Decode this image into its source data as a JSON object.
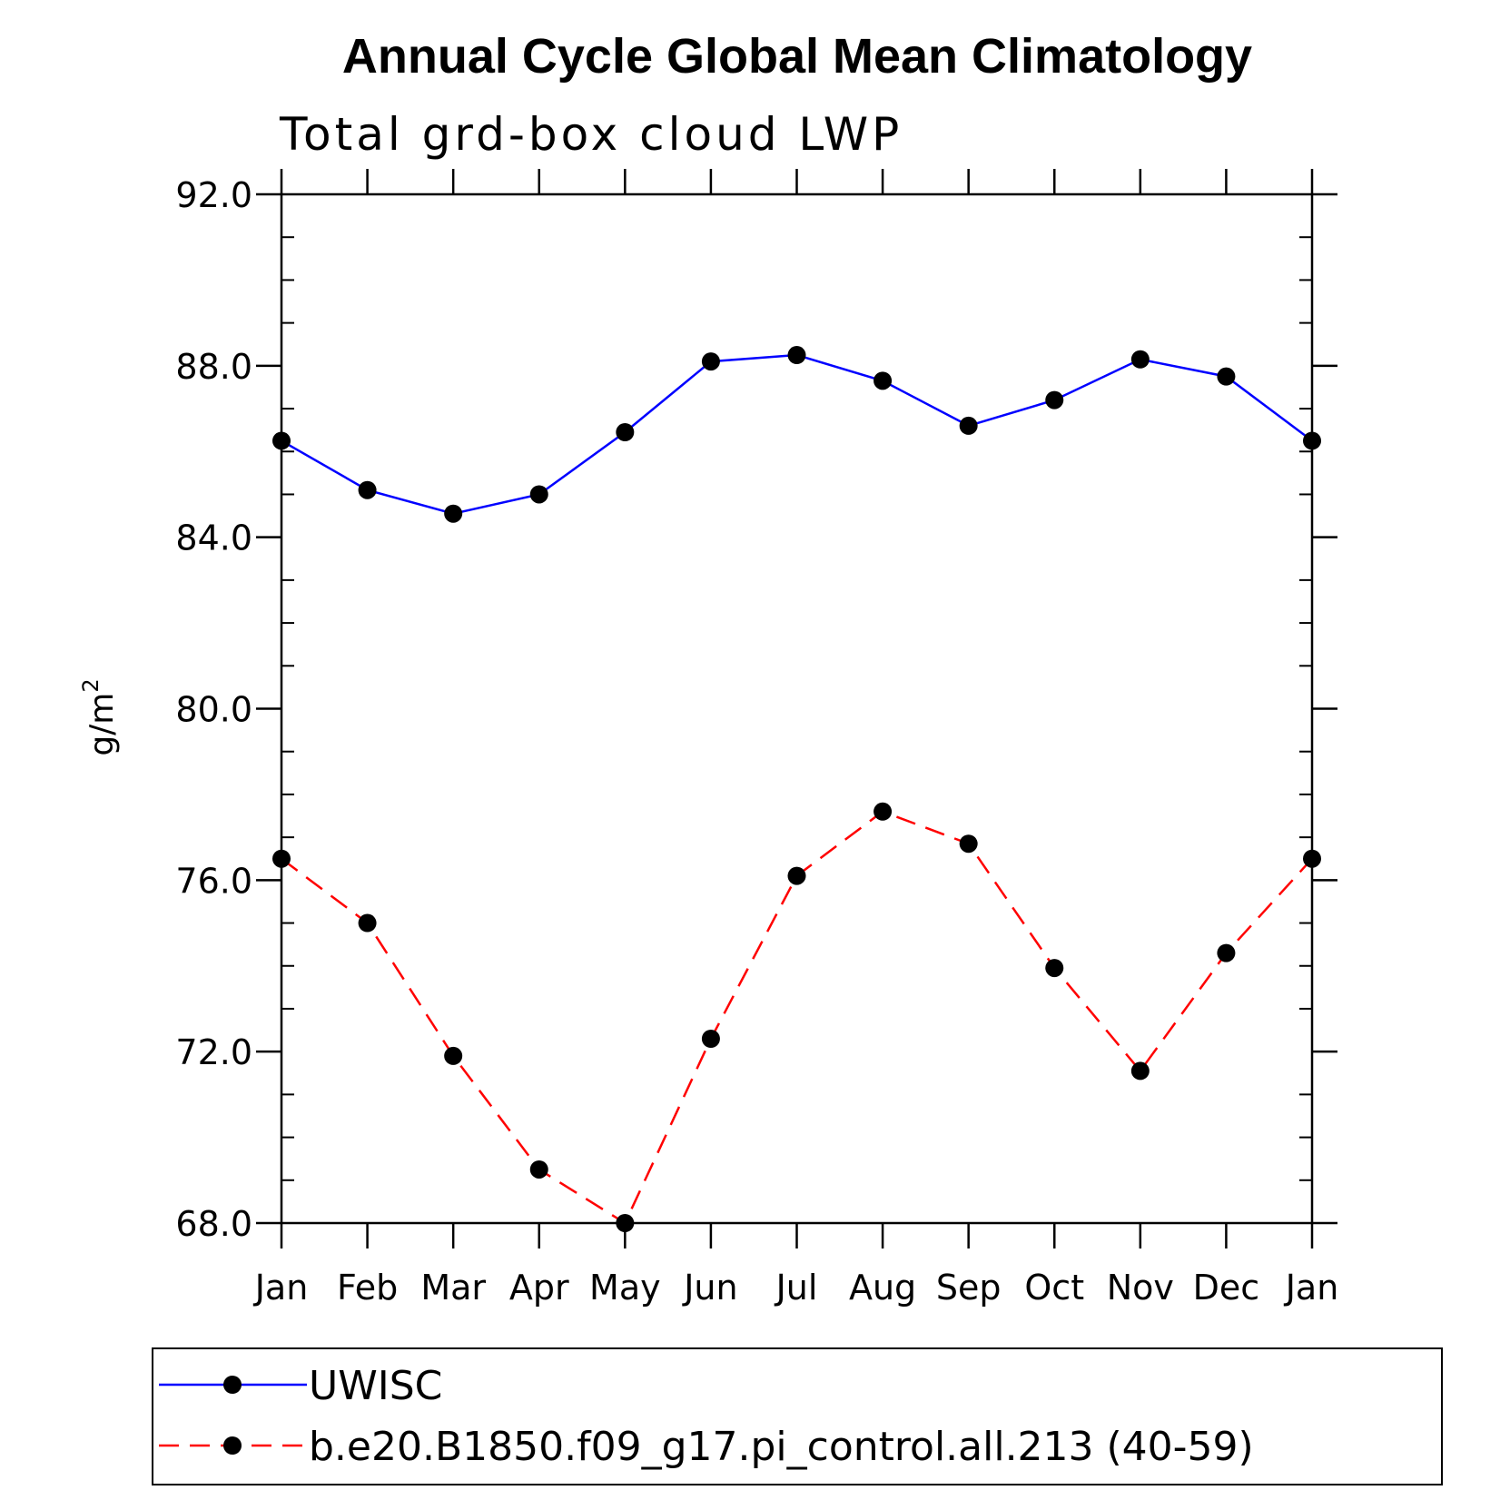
{
  "chart_data": {
    "type": "line",
    "title": "Annual Cycle Global Mean Climatology",
    "subtitle": "Total grd-box cloud LWP",
    "xlabel": "",
    "ylabel": "g/m",
    "ylabel_superscript": "2",
    "categories": [
      "Jan",
      "Feb",
      "Mar",
      "Apr",
      "May",
      "Jun",
      "Jul",
      "Aug",
      "Sep",
      "Oct",
      "Nov",
      "Dec",
      "Jan"
    ],
    "ylim": [
      68.0,
      92.0
    ],
    "yticks": [
      "68.0",
      "72.0",
      "76.0",
      "80.0",
      "84.0",
      "88.0",
      "92.0"
    ],
    "grid": false,
    "legend_position": "bottom",
    "series": [
      {
        "name": "UWISC",
        "color": "#0000ff",
        "line_style": "solid",
        "marker": "filled-circle",
        "values": [
          86.25,
          85.1,
          84.55,
          85.0,
          86.45,
          88.1,
          88.25,
          87.65,
          86.6,
          87.2,
          88.15,
          87.75,
          86.25
        ]
      },
      {
        "name": "b.e20.B1850.f09_g17.pi_control.all.213 (40-59)",
        "color": "#ff0000",
        "line_style": "dashed",
        "marker": "filled-circle",
        "values": [
          76.5,
          75.0,
          71.9,
          69.25,
          68.0,
          72.3,
          76.1,
          77.6,
          76.85,
          73.95,
          71.55,
          74.3,
          76.5
        ]
      }
    ]
  }
}
